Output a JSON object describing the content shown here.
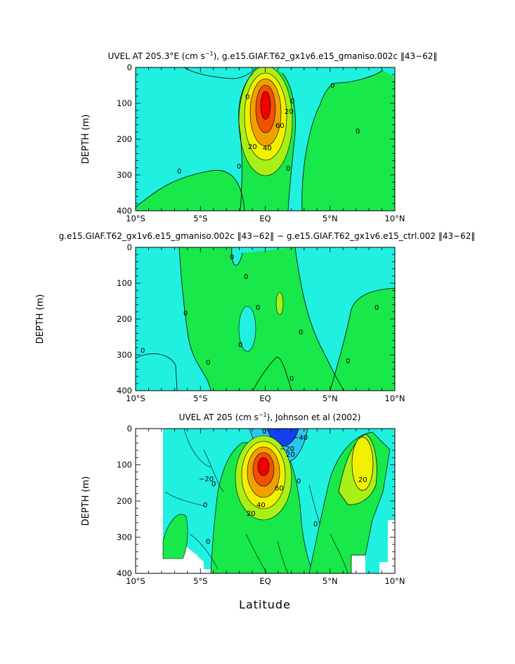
{
  "figure": {
    "xlabel": "Latitude"
  },
  "colors": {
    "cyan": "#20F0E0",
    "green": "#18E84A",
    "yellowgreen": "#A8F018",
    "yellow": "#F0F000",
    "orange": "#F0A000",
    "red": "#F00000",
    "blue": "#1040F0",
    "lightblue": "#2AC8F0"
  },
  "chart_data": [
    {
      "type": "contour",
      "title": "UVEL AT 205.3°E (cm s",
      "title_sup": "−1",
      "title_rest": "), g.e15.GIAF.T62_gx1v6.e15_gmaniso.002c ‖43−62‖",
      "ylabel": "DEPTH (m)",
      "xlim": [
        -10,
        10
      ],
      "ylim": [
        400,
        0
      ],
      "xticklabels": [
        "10°S",
        "5°S",
        "EQ",
        "5°N",
        "10°N"
      ],
      "yticklabels": [
        "0",
        "100",
        "200",
        "300",
        "400"
      ],
      "contour_labels": [
        "0",
        "0",
        "20",
        "60",
        "40",
        "20",
        "0",
        "0",
        "0",
        "0",
        "0"
      ],
      "jet_core": {
        "lat": 0,
        "depth": 135,
        "max_cm_s": 100
      }
    },
    {
      "type": "contour",
      "title": "g.e15.GIAF.T62_gx1v6.e15_gmaniso.002c ‖43−62‖ − g.e15.GIAF.T62_gx1v6.e15_ctrl.002 ‖43−62‖",
      "ylabel": "DEPTH (m)",
      "xlim": [
        -10,
        10
      ],
      "ylim": [
        400,
        0
      ],
      "xticklabels": [
        "10°S",
        "5°S",
        "EQ",
        "5°N",
        "10°N"
      ],
      "yticklabels": [
        "0",
        "100",
        "200",
        "300",
        "400"
      ],
      "contour_labels": [
        "0",
        "0",
        "0",
        "0",
        "0",
        "0",
        "0",
        "0",
        "0",
        "0",
        "0"
      ]
    },
    {
      "type": "contour",
      "title": "UVEL AT 205 (cm s",
      "title_sup": "−1",
      "title_rest": "), Johnson et al (2002)",
      "ylabel": "DEPTH (m)",
      "xlim": [
        -10,
        10
      ],
      "ylim": [
        400,
        0
      ],
      "xticklabels": [
        "10°S",
        "5°S",
        "EQ",
        "5°N",
        "10°N"
      ],
      "yticklabels": [
        "0",
        "100",
        "200",
        "300",
        "400"
      ],
      "contour_labels": [
        "−20",
        "0",
        "20",
        "0",
        "40",
        "60",
        "20",
        "0",
        "−20",
        "−40",
        "20",
        "0",
        "0",
        "0"
      ],
      "jet_core": {
        "lat": 0,
        "depth": 130,
        "max_cm_s": 100
      }
    }
  ]
}
